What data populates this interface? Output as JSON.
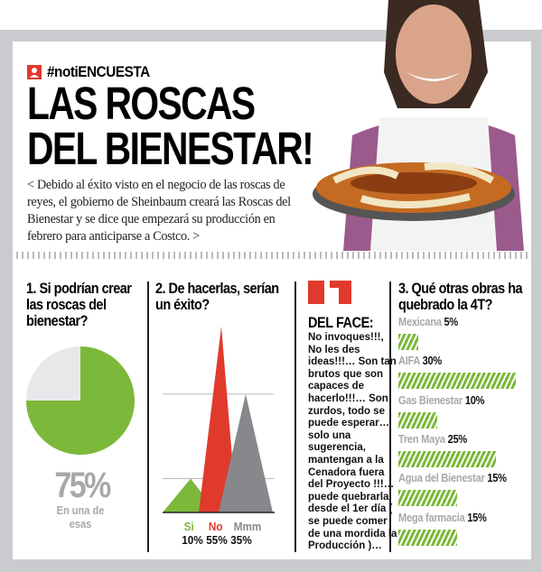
{
  "header": {
    "tag": "#notiENCUESTA",
    "title_line1": "LAS ROSCAS",
    "title_line2": "DEL BIENESTAR!",
    "lead": "< Debido al éxito visto en el negocio de las roscas de reyes, el gobierno de Sheinbaum creará las Roscas del Bienestar y se dice que empezará su producción en febrero para anticiparse a Costco. >"
  },
  "colors": {
    "green": "#7cb83a",
    "red": "#e03a2c",
    "gray": "#88888c",
    "light": "#e8e8ea"
  },
  "chart_data": [
    {
      "type": "pie",
      "title": "1. Si podrían crear las roscas del bienestar?",
      "values": [
        75,
        25
      ],
      "big_label": "75%",
      "caption": "En una de esas"
    },
    {
      "type": "area",
      "title": "2. De hacerlas, serían un éxito?",
      "categories": [
        "Si",
        "No",
        "Mmm"
      ],
      "values": [
        10,
        55,
        35
      ],
      "value_labels": [
        "10%",
        "55%",
        "35%"
      ],
      "grid": true
    },
    {
      "type": "bar",
      "title": "3. Qué otras obras ha quebrado la 4T?",
      "categories": [
        "Mexicana",
        "AIFA",
        "Gas Bienestar",
        "Tren Maya",
        "Agua del Bienestar",
        "Mega farmacia"
      ],
      "values": [
        5,
        30,
        10,
        25,
        15,
        15
      ],
      "value_labels": [
        "5%",
        "30%",
        "10%",
        "25%",
        "15%",
        "15%"
      ]
    }
  ],
  "face": {
    "heading": "DEL FACE:",
    "text": "No invoques!!!, No les des ideas!!!… Son tan brutos que son capaces de hacerlo!!!… Son zurdos, todo se puede esperar…solo una sugerencia, mantengan a la Cenadora fuera del Proyecto !!!…puede quebrarla desde el 1er día ( se puede comer de una mordida la Producción )…"
  }
}
